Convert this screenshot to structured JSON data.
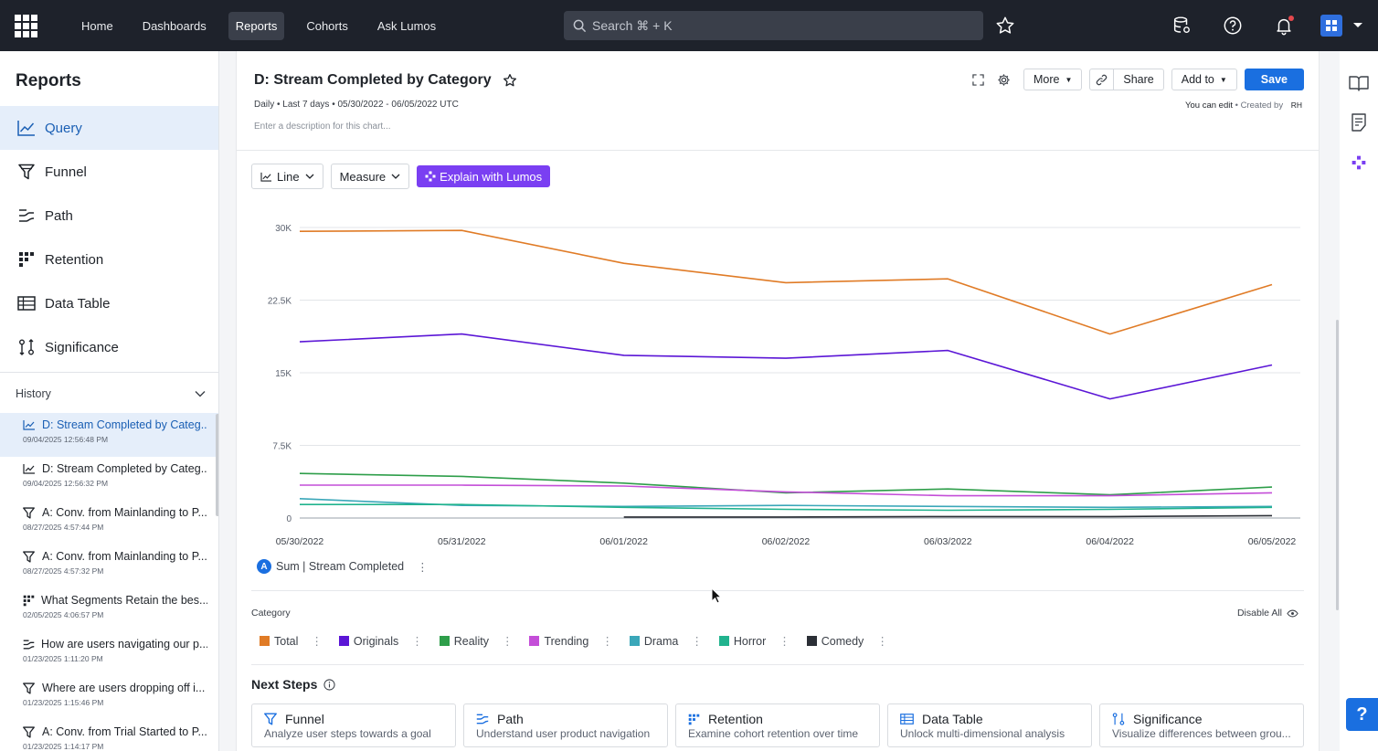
{
  "topnav": {
    "items": [
      "Home",
      "Dashboards",
      "Reports",
      "Cohorts",
      "Ask Lumos"
    ],
    "active": "Reports",
    "search_placeholder": "Search ⌘ + K"
  },
  "sidebar": {
    "title": "Reports",
    "items": [
      {
        "label": "Query",
        "icon": "line-chart-icon",
        "active": true
      },
      {
        "label": "Funnel",
        "icon": "funnel-icon"
      },
      {
        "label": "Path",
        "icon": "path-icon"
      },
      {
        "label": "Retention",
        "icon": "retention-icon"
      },
      {
        "label": "Data Table",
        "icon": "table-icon"
      },
      {
        "label": "Significance",
        "icon": "significance-icon"
      }
    ],
    "history_label": "History",
    "history": [
      {
        "title": "D: Stream Completed by Categ...",
        "date": "09/04/2025 12:56:48 PM",
        "icon": "line-chart-icon",
        "active": true
      },
      {
        "title": "D: Stream Completed by Categ...",
        "date": "09/04/2025 12:56:32 PM",
        "icon": "line-chart-icon"
      },
      {
        "title": "A: Conv. from Mainlanding to P...",
        "date": "08/27/2025 4:57:44 PM",
        "icon": "funnel-icon"
      },
      {
        "title": "A: Conv. from Mainlanding to P...",
        "date": "08/27/2025 4:57:32 PM",
        "icon": "funnel-icon"
      },
      {
        "title": "What Segments Retain the bes...",
        "date": "02/05/2025 4:06:57 PM",
        "icon": "retention-icon"
      },
      {
        "title": "How are users navigating our p...",
        "date": "01/23/2025 1:11:20 PM",
        "icon": "path-icon"
      },
      {
        "title": "Where are users dropping off i...",
        "date": "01/23/2025 1:15:46 PM",
        "icon": "funnel-icon"
      },
      {
        "title": "A: Conv. from Trial Started to P...",
        "date": "01/23/2025 1:14:17 PM",
        "icon": "funnel-icon"
      }
    ]
  },
  "report": {
    "title": "D: Stream Completed by Category",
    "subline": "Daily • Last 7 days • 05/30/2022 - 06/05/2022 UTC",
    "description_placeholder": "Enter a description for this chart...",
    "more_label": "More",
    "share_label": "Share",
    "add_to_label": "Add to",
    "save_label": "Save",
    "edit_status": "You can edit",
    "created_by": "• Created by",
    "creator_initials": "RH",
    "chart_type_label": "Line",
    "measure_label": "Measure",
    "explain_label": "Explain with Lumos",
    "metric_letter": "A",
    "metric_label": "Sum | Stream Completed",
    "category_label": "Category",
    "disable_all_label": "Disable All",
    "next_steps_label": "Next Steps"
  },
  "next_steps": [
    {
      "title": "Funnel",
      "desc": "Analyze user steps towards a goal",
      "icon": "funnel-icon"
    },
    {
      "title": "Path",
      "desc": "Understand user product navigation",
      "icon": "path-icon"
    },
    {
      "title": "Retention",
      "desc": "Examine cohort retention over time",
      "icon": "retention-icon"
    },
    {
      "title": "Data Table",
      "desc": "Unlock multi-dimensional analysis",
      "icon": "table-icon"
    },
    {
      "title": "Significance",
      "desc": "Visualize differences between grou...",
      "icon": "significance-icon"
    }
  ],
  "colors": {
    "Total": "#e07b26",
    "Originals": "#5b16d6",
    "Reality": "#2e9e4a",
    "Trending": "#c44ed8",
    "Drama": "#3aa7b9",
    "Horror": "#21b38e",
    "Comedy": "#2b2f36"
  },
  "chart_data": {
    "type": "line",
    "x": [
      "05/30/2022",
      "05/31/2022",
      "06/01/2022",
      "06/02/2022",
      "06/03/2022",
      "06/04/2022",
      "06/05/2022"
    ],
    "ylim": [
      0,
      30000
    ],
    "yticks": [
      "0",
      "7.5K",
      "15K",
      "22.5K",
      "30K"
    ],
    "ytick_values": [
      0,
      7500,
      15000,
      22500,
      30000
    ],
    "grid": true,
    "series": [
      {
        "name": "Total",
        "values": [
          29600,
          29700,
          26300,
          24300,
          24700,
          19000,
          24100
        ]
      },
      {
        "name": "Originals",
        "values": [
          18200,
          19000,
          16800,
          16500,
          17300,
          12300,
          15800
        ]
      },
      {
        "name": "Reality",
        "values": [
          4600,
          4300,
          3600,
          2600,
          3000,
          2400,
          3200
        ]
      },
      {
        "name": "Trending",
        "values": [
          3400,
          3400,
          3300,
          2700,
          2300,
          2300,
          2600
        ]
      },
      {
        "name": "Drama",
        "values": [
          2000,
          1300,
          1200,
          1300,
          1200,
          1100,
          1200
        ]
      },
      {
        "name": "Horror",
        "values": [
          1400,
          1400,
          1100,
          900,
          800,
          900,
          1100
        ]
      },
      {
        "name": "Comedy",
        "values": [
          null,
          null,
          100,
          100,
          150,
          150,
          250
        ]
      }
    ]
  }
}
